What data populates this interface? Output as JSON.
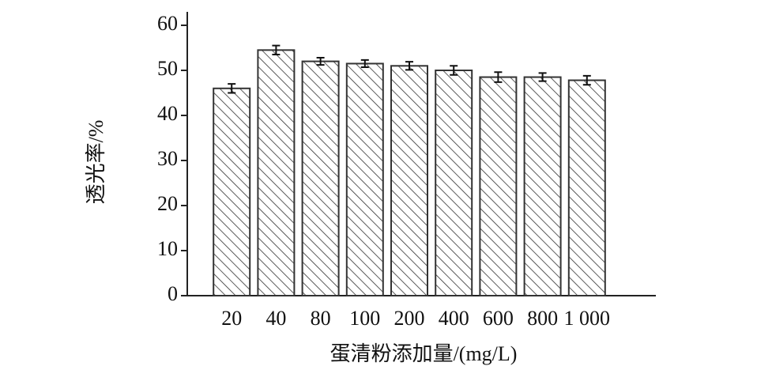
{
  "chart_data": {
    "type": "bar",
    "x_label": "蛋清粉添加量/(mg/L)",
    "y_label": "透光率/%",
    "categories": [
      "20",
      "40",
      "80",
      "100",
      "200",
      "400",
      "600",
      "800",
      "1 000"
    ],
    "values": [
      46.0,
      54.5,
      52.0,
      51.5,
      51.0,
      50.0,
      48.5,
      48.5,
      47.8
    ],
    "errors": [
      1.0,
      1.0,
      0.8,
      0.8,
      0.9,
      1.0,
      1.1,
      0.9,
      1.0
    ],
    "color": "#333333",
    "ylim": [
      0,
      60
    ],
    "yticks": [
      0,
      10,
      20,
      30,
      40,
      50,
      60
    ],
    "grid": false
  }
}
